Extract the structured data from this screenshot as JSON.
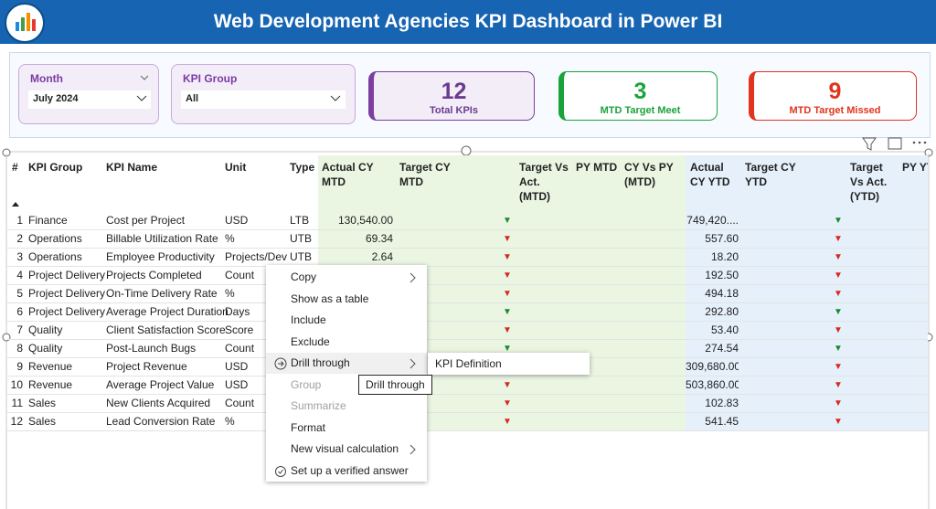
{
  "header": {
    "title": "Web Development Agencies KPI Dashboard in Power BI"
  },
  "slicers": [
    {
      "label": "Month",
      "value": "July 2024"
    },
    {
      "label": "KPI Group",
      "value": "All"
    }
  ],
  "cards": [
    {
      "value": 12,
      "label": "Total KPIs",
      "color": "#7b3fa0"
    },
    {
      "value": 3,
      "label": "MTD Target Meet",
      "color": "#1aa33a"
    },
    {
      "value": 9,
      "label": "MTD Target Missed",
      "color": "#e0341c"
    }
  ],
  "table": {
    "columns": [
      "#",
      "KPI Group",
      "KPI Name",
      "Unit",
      "Type",
      "Actual CY MTD",
      "Target CY MTD",
      "Target Vs Act. (MTD)",
      "PY MTD",
      "CY Vs PY (MTD)",
      "Actual CY YTD",
      "Target CY YTD",
      "Target Vs Act. (YTD)",
      "PY YTD"
    ],
    "rows": [
      {
        "num": 1,
        "group": "Finance",
        "name": "Cost per Project",
        "unit": "USD",
        "type": "LTB",
        "actual_mtd": "130,540.00",
        "mtd_arrow": "▼",
        "mtd_color": "#1a8a2e",
        "actual_ytd": "749,420....",
        "ytd_arrow": "▼",
        "ytd_color": "#1a8a2e"
      },
      {
        "num": 2,
        "group": "Operations",
        "name": "Billable Utilization Rate",
        "unit": "%",
        "type": "UTB",
        "actual_mtd": "69.34",
        "mtd_arrow": "▼",
        "mtd_color": "#d42a1e",
        "actual_ytd": "557.60",
        "ytd_arrow": "▼",
        "ytd_color": "#d42a1e"
      },
      {
        "num": 3,
        "group": "Operations",
        "name": "Employee Productivity",
        "unit": "Projects/Dev",
        "type": "UTB",
        "actual_mtd": "2.64",
        "mtd_arrow": "▼",
        "mtd_color": "#d42a1e",
        "actual_ytd": "18.20",
        "ytd_arrow": "▼",
        "ytd_color": "#d42a1e"
      },
      {
        "num": 4,
        "group": "Project Delivery",
        "name": "Projects Completed",
        "unit": "Count",
        "type": null,
        "actual_mtd": null,
        "mtd_arrow": "▼",
        "mtd_color": "#d42a1e",
        "actual_ytd": "192.50",
        "ytd_arrow": "▼",
        "ytd_color": "#d42a1e"
      },
      {
        "num": 5,
        "group": "Project Delivery",
        "name": "On-Time Delivery Rate",
        "unit": "%",
        "type": null,
        "actual_mtd": null,
        "mtd_arrow": "▼",
        "mtd_color": "#d42a1e",
        "actual_ytd": "494.18",
        "ytd_arrow": "▼",
        "ytd_color": "#d42a1e"
      },
      {
        "num": 6,
        "group": "Project Delivery",
        "name": "Average Project Duration",
        "unit": "Days",
        "type": null,
        "actual_mtd": null,
        "mtd_arrow": "▼",
        "mtd_color": "#1a8a2e",
        "actual_ytd": "292.80",
        "ytd_arrow": "▼",
        "ytd_color": "#1a8a2e"
      },
      {
        "num": 7,
        "group": "Quality",
        "name": "Client Satisfaction Score",
        "unit": "Score",
        "type": null,
        "actual_mtd": null,
        "mtd_arrow": "▼",
        "mtd_color": "#d42a1e",
        "actual_ytd": "53.40",
        "ytd_arrow": "▼",
        "ytd_color": "#d42a1e"
      },
      {
        "num": 8,
        "group": "Quality",
        "name": "Post-Launch Bugs",
        "unit": "Count",
        "type": null,
        "actual_mtd": null,
        "mtd_arrow": "▼",
        "mtd_color": "#1a8a2e",
        "actual_ytd": "274.54",
        "ytd_arrow": "▼",
        "ytd_color": "#1a8a2e"
      },
      {
        "num": 9,
        "group": "Revenue",
        "name": "Project Revenue",
        "unit": "USD",
        "type": null,
        "actual_mtd": null,
        "mtd_arrow": null,
        "mtd_color": null,
        "actual_ytd": "309,680.00",
        "ytd_arrow": "▼",
        "ytd_color": "#d42a1e"
      },
      {
        "num": 10,
        "group": "Revenue",
        "name": "Average Project Value",
        "unit": "USD",
        "type": null,
        "actual_mtd": null,
        "mtd_arrow": "▼",
        "mtd_color": "#d42a1e",
        "actual_ytd": "503,860.00",
        "ytd_arrow": "▼",
        "ytd_color": "#d42a1e"
      },
      {
        "num": 11,
        "group": "Sales",
        "name": "New Clients Acquired",
        "unit": "Count",
        "type": null,
        "actual_mtd": null,
        "mtd_arrow": "▼",
        "mtd_color": "#d42a1e",
        "actual_ytd": "102.83",
        "ytd_arrow": "▼",
        "ytd_color": "#d42a1e"
      },
      {
        "num": 12,
        "group": "Sales",
        "name": "Lead Conversion Rate",
        "unit": "%",
        "type": null,
        "actual_mtd": null,
        "mtd_arrow": "▼",
        "mtd_color": "#d42a1e",
        "actual_ytd": "541.45",
        "ytd_arrow": "▼",
        "ytd_color": "#d42a1e"
      }
    ]
  },
  "menu": {
    "items": [
      {
        "label": "Copy",
        "submenu": true
      },
      {
        "label": "Show as a table"
      },
      {
        "label": "Include"
      },
      {
        "label": "Exclude"
      },
      {
        "label": "Drill through",
        "submenu": true,
        "highlighted": true,
        "icon": "arrow"
      },
      {
        "label": "Group",
        "disabled": true
      },
      {
        "label": "Summarize",
        "disabled": true
      },
      {
        "label": "Format"
      },
      {
        "label": "New visual calculation",
        "submenu": true
      },
      {
        "label": "Set up a verified answer",
        "icon": "check"
      }
    ]
  },
  "submenu": {
    "items": [
      "KPI Definition"
    ]
  },
  "tooltip": "Drill through"
}
